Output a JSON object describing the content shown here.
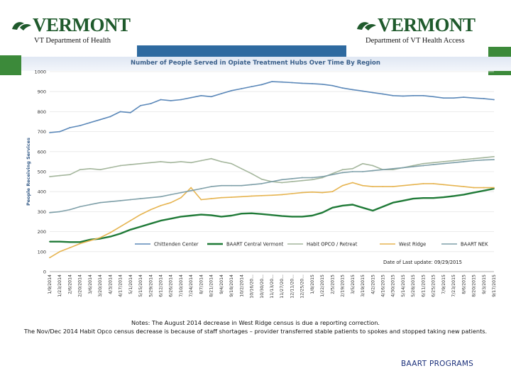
{
  "header": {
    "left_logo": "VERMONT",
    "right_logo": "VERMONT",
    "left_dept": "VT Department of Health",
    "right_dept": "Department of VT Health Access"
  },
  "colors": {
    "header_green": "#3c8a3a",
    "header_blue": "#2e6aa0",
    "chittenden": "#5b88b9",
    "central": "#1f7a37",
    "habit": "#a4b69c",
    "westridge": "#e6b450",
    "nek": "#7e9fa8"
  },
  "notes": [
    "Notes: The August 2014 decrease in West Ridge census is due a reporting correction.",
    "The Nov/Dec 2014 Habit Opco census decrease is because of staff shortages – provider transferred stable patients to spokes and stopped taking new patients."
  ],
  "footer": "BAART PROGRAMS",
  "chart_data": {
    "type": "line",
    "title": "Number of People Served in Opiate Treatment Hubs Over Time By Region",
    "ylabel": "People Receiving Services",
    "xlabel": "",
    "ylim": [
      0,
      1000
    ],
    "yticks": [
      0,
      100,
      200,
      300,
      400,
      500,
      600,
      700,
      800,
      900,
      1000
    ],
    "x_tick_labels": [
      "1/9/2014",
      "1/23/2014",
      "2/6/2014",
      "2/20/2014",
      "3/6/2014",
      "3/20/2014",
      "4/3/2014",
      "4/17/2014",
      "5/1/2014",
      "5/15/2014",
      "5/29/2014",
      "6/12/2014",
      "6/26/2014",
      "7/10/2014",
      "7/24/2014",
      "8/7/2014",
      "8/21/2014",
      "9/4/2014",
      "9/18/2014",
      "10/2/2014",
      "10/16/20...",
      "10/30/20...",
      "11/13/20...",
      "11/27/20...",
      "12/11/20...",
      "12/25/20...",
      "1/8/2015",
      "1/22/2015",
      "2/5/2015",
      "2/19/2015",
      "3/5/2015",
      "3/19/2015",
      "4/2/2015",
      "4/16/2015",
      "4/30/2015",
      "5/14/2015",
      "5/28/2015",
      "6/11/2015",
      "6/25/2015",
      "7/9/2015",
      "7/23/2015",
      "8/6/2015",
      "8/20/2015",
      "9/3/2015",
      "9/17/2015"
    ],
    "last_update": "Date of Last update: 09/29/2015",
    "legend_position": "bottom",
    "series": [
      {
        "name": "Chittenden Center",
        "color": "#5b88b9",
        "values": [
          695,
          700,
          720,
          730,
          745,
          760,
          775,
          800,
          795,
          830,
          840,
          860,
          855,
          860,
          870,
          880,
          875,
          890,
          905,
          915,
          925,
          935,
          950,
          948,
          945,
          942,
          940,
          937,
          930,
          918,
          910,
          903,
          895,
          888,
          880,
          878,
          880,
          880,
          875,
          868,
          868,
          872,
          868,
          865,
          860
        ]
      },
      {
        "name": "BAART Central Vermont",
        "color": "#1f7a37",
        "values": [
          150,
          150,
          148,
          148,
          160,
          165,
          175,
          190,
          210,
          225,
          240,
          255,
          265,
          275,
          280,
          285,
          282,
          275,
          280,
          290,
          292,
          288,
          283,
          278,
          275,
          275,
          280,
          295,
          320,
          330,
          335,
          320,
          305,
          325,
          345,
          355,
          365,
          368,
          368,
          372,
          378,
          385,
          395,
          405,
          415
        ]
      },
      {
        "name": "Habit OPCO / Retreat",
        "color": "#a4b69c",
        "values": [
          475,
          480,
          485,
          510,
          515,
          510,
          520,
          530,
          535,
          540,
          545,
          550,
          545,
          550,
          545,
          555,
          565,
          550,
          540,
          515,
          490,
          462,
          450,
          445,
          450,
          455,
          460,
          470,
          490,
          510,
          515,
          540,
          530,
          510,
          510,
          520,
          530,
          540,
          545,
          550,
          555,
          560,
          565,
          570,
          575
        ]
      },
      {
        "name": "West Ridge",
        "color": "#e6b450",
        "values": [
          70,
          100,
          120,
          140,
          155,
          170,
          195,
          225,
          255,
          285,
          310,
          330,
          345,
          370,
          420,
          360,
          365,
          370,
          372,
          375,
          378,
          380,
          382,
          385,
          390,
          395,
          398,
          395,
          400,
          430,
          445,
          430,
          425,
          425,
          425,
          430,
          435,
          440,
          440,
          435,
          430,
          425,
          420,
          420,
          420
        ]
      },
      {
        "name": "BAART NEK",
        "color": "#7e9fa8",
        "values": [
          295,
          300,
          310,
          325,
          335,
          345,
          350,
          355,
          360,
          365,
          370,
          375,
          385,
          395,
          405,
          415,
          425,
          430,
          430,
          430,
          435,
          440,
          450,
          460,
          465,
          470,
          470,
          475,
          485,
          495,
          500,
          500,
          505,
          510,
          515,
          520,
          525,
          530,
          535,
          540,
          545,
          550,
          555,
          558,
          560
        ]
      }
    ]
  }
}
